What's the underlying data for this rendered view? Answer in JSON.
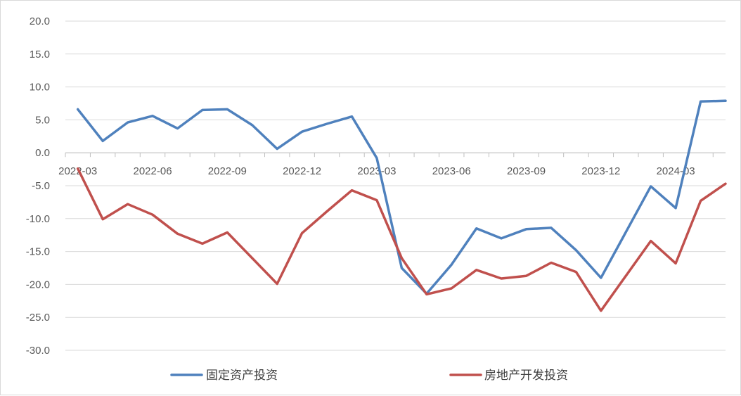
{
  "chart_data": {
    "type": "line",
    "title": "",
    "xlabel": "",
    "ylabel": "",
    "ylim": [
      -30,
      20
    ],
    "y_ticks": [
      "20.0",
      "15.0",
      "10.0",
      "5.0",
      "0.0",
      "-5.0",
      "-10.0",
      "-15.0",
      "-20.0",
      "-25.0",
      "-30.0"
    ],
    "x": [
      "2022-03",
      "2022-04",
      "2022-05",
      "2022-06",
      "2022-07",
      "2022-08",
      "2022-09",
      "2022-10",
      "2022-11",
      "2022-12",
      "2023-01",
      "2023-02",
      "2023-03",
      "2023-04",
      "2023-05",
      "2023-06",
      "2023-07",
      "2023-08",
      "2023-09",
      "2023-10",
      "2023-11",
      "2023-12",
      "2024-01",
      "2024-02",
      "2024-03",
      "2024-04",
      "2024-05"
    ],
    "x_tick_labels": [
      "2022-03",
      "2022-06",
      "2022-09",
      "2022-12",
      "2023-03",
      "2023-06",
      "2023-09",
      "2023-12",
      "2024-03"
    ],
    "grid": true,
    "legend_position": "bottom",
    "series": [
      {
        "name": "固定资产投资",
        "color": "#4f81bd",
        "values": [
          6.6,
          1.8,
          4.6,
          5.6,
          3.7,
          6.5,
          6.6,
          4.2,
          0.6,
          3.2,
          4.4,
          5.5,
          -0.8,
          -17.5,
          -21.4,
          -17.0,
          -11.5,
          -13.0,
          -11.6,
          -11.4,
          -14.8,
          -19.0,
          null,
          -5.1,
          -8.4,
          7.8,
          7.9
        ]
      },
      {
        "name": "房地产开发投资",
        "color": "#c0504d",
        "values": [
          -2.4,
          -10.1,
          -7.8,
          -9.4,
          -12.3,
          -13.8,
          -12.1,
          null,
          -19.9,
          -12.2,
          -8.9,
          -5.7,
          -7.2,
          -16.0,
          -21.5,
          -20.6,
          -17.8,
          -19.1,
          -18.7,
          -16.7,
          -18.1,
          -24.0,
          null,
          -13.4,
          -16.8,
          -7.3,
          -4.7
        ]
      }
    ]
  }
}
